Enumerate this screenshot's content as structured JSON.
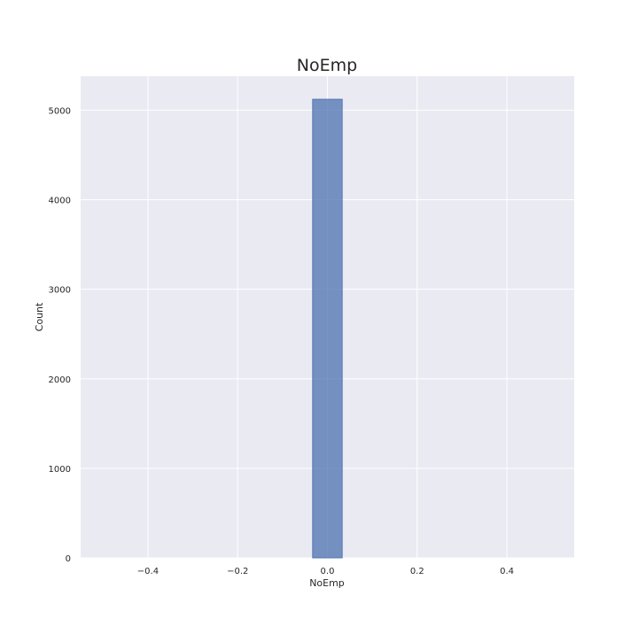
{
  "chart_data": {
    "type": "bar",
    "title": "NoEmp",
    "xlabel": "NoEmp",
    "ylabel": "Count",
    "xlim": [
      -0.55,
      0.55
    ],
    "ylim": [
      0,
      5380
    ],
    "xticks": [
      -0.4,
      -0.2,
      0.0,
      0.2,
      0.4
    ],
    "xtick_labels": [
      "−0.4",
      "−0.2",
      "0.0",
      "0.2",
      "0.4"
    ],
    "yticks": [
      0,
      1000,
      2000,
      3000,
      4000,
      5000
    ],
    "ytick_labels": [
      "0",
      "1000",
      "2000",
      "3000",
      "4000",
      "5000"
    ],
    "bins": [
      {
        "x0": -0.033,
        "x1": 0.033,
        "value": 5122
      }
    ],
    "grid": true,
    "colors": {
      "background": "#eaeaf2",
      "grid": "#ffffff",
      "bar_fill": "#4c72b0",
      "bar_opacity": 0.75
    }
  }
}
